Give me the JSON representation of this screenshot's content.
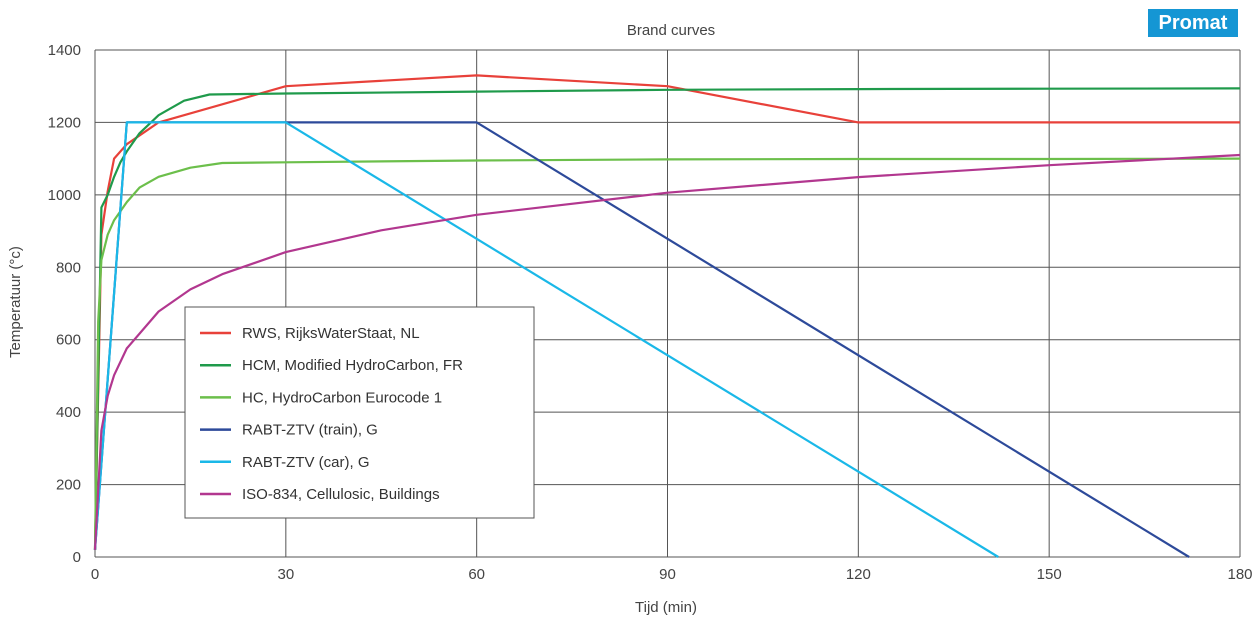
{
  "brand": {
    "name": "Promat",
    "color": "#1596d4"
  },
  "chart_data": {
    "type": "line",
    "title": "Brand curves",
    "xlabel": "Tijd (min)",
    "ylabel": "Temperatuur (°c)",
    "xlim": [
      0,
      180
    ],
    "ylim": [
      0,
      1400
    ],
    "xticks": [
      0,
      30,
      60,
      90,
      120,
      150,
      180
    ],
    "yticks": [
      0,
      200,
      400,
      600,
      800,
      1000,
      1200,
      1400
    ],
    "grid": true,
    "legend_position": "center-left",
    "series": [
      {
        "name": "RWS, RijksWaterStaat, NL",
        "color": "#e8413a",
        "x": [
          0,
          1,
          2,
          3,
          5,
          10,
          30,
          60,
          90,
          120,
          180
        ],
        "y": [
          20,
          890,
          1010,
          1100,
          1140,
          1200,
          1300,
          1330,
          1300,
          1200,
          1200
        ]
      },
      {
        "name": "HCM, Modified HydroCarbon, FR",
        "color": "#1f9a4b",
        "x": [
          0,
          1,
          2,
          3,
          4,
          5,
          7,
          10,
          14,
          18,
          30,
          60,
          90,
          120,
          150,
          180
        ],
        "y": [
          20,
          965,
          1000,
          1050,
          1090,
          1120,
          1170,
          1220,
          1260,
          1277,
          1280,
          1285,
          1290,
          1292,
          1293,
          1294
        ]
      },
      {
        "name": "HC, HydroCarbon Eurocode 1",
        "color": "#6cbf4b",
        "x": [
          0,
          0.5,
          1,
          2,
          3,
          5,
          7,
          10,
          15,
          20,
          30,
          60,
          90,
          120,
          150,
          180
        ],
        "y": [
          20,
          650,
          820,
          890,
          930,
          980,
          1020,
          1050,
          1075,
          1088,
          1090,
          1095,
          1098,
          1099,
          1099,
          1100
        ]
      },
      {
        "name": "RABT-ZTV (train), G",
        "color": "#2d4a9a",
        "x": [
          0,
          5,
          60,
          172
        ],
        "y": [
          20,
          1200,
          1200,
          0
        ]
      },
      {
        "name": "RABT-ZTV (car), G",
        "color": "#1ab8e8",
        "x": [
          0,
          5,
          30,
          142
        ],
        "y": [
          20,
          1200,
          1200,
          0
        ]
      },
      {
        "name": "ISO-834, Cellulosic, Buildings",
        "color": "#b2378f",
        "x": [
          0,
          1,
          2,
          3,
          5,
          10,
          15,
          20,
          30,
          45,
          60,
          90,
          120,
          150,
          180
        ],
        "y": [
          20,
          349,
          445,
          502,
          576,
          678,
          739,
          781,
          842,
          902,
          945,
          1006,
          1049,
          1082,
          1110
        ]
      }
    ]
  }
}
